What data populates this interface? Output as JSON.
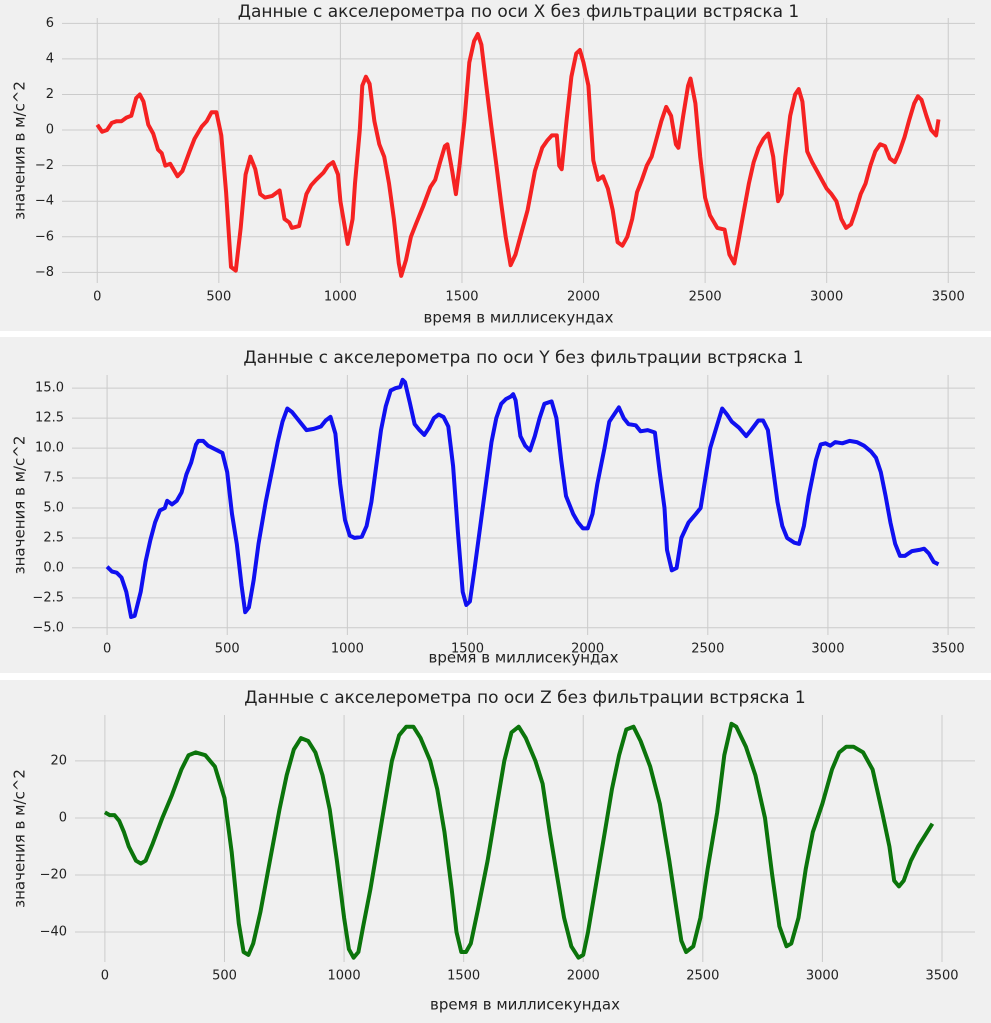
{
  "chart_data": [
    {
      "type": "line",
      "title": "Данные с акселерометра по оси X без фильтрации встряска 1",
      "xlabel": "время в миллисекундах",
      "ylabel": "значения в м/с^2",
      "xlim": [
        -145,
        3610
      ],
      "ylim": [
        -8.6,
        6.3
      ],
      "xticks": [
        0,
        500,
        1000,
        1500,
        2000,
        2500,
        3000,
        3500
      ],
      "yticks": [
        {
          "value": -8,
          "label": "−8"
        },
        {
          "value": -6,
          "label": "−6"
        },
        {
          "value": -4,
          "label": "−4"
        },
        {
          "value": -2,
          "label": "−2"
        },
        0,
        2,
        4,
        6
      ],
      "grid": true,
      "x": [
        0,
        20,
        40,
        60,
        80,
        100,
        120,
        140,
        160,
        175,
        190,
        210,
        230,
        250,
        265,
        280,
        300,
        330,
        350,
        380,
        400,
        430,
        450,
        470,
        490,
        510,
        530,
        550,
        570,
        590,
        600,
        610,
        630,
        650,
        670,
        690,
        720,
        750,
        770,
        790,
        800,
        830,
        860,
        880,
        900,
        930,
        950,
        970,
        990,
        1000,
        1030,
        1050,
        1060,
        1080,
        1090,
        1105,
        1120,
        1140,
        1160,
        1180,
        1200,
        1220,
        1240,
        1250,
        1270,
        1290,
        1310,
        1340,
        1370,
        1390,
        1410,
        1430,
        1440,
        1460,
        1475,
        1490,
        1510,
        1530,
        1550,
        1565,
        1580,
        1600,
        1620,
        1640,
        1660,
        1680,
        1700,
        1720,
        1740,
        1770,
        1800,
        1830,
        1850,
        1870,
        1890,
        1900,
        1910,
        1930,
        1950,
        1970,
        1985,
        2000,
        2020,
        2040,
        2060,
        2080,
        2100,
        2120,
        2140,
        2160,
        2180,
        2200,
        2220,
        2240,
        2260,
        2280,
        2300,
        2320,
        2340,
        2360,
        2380,
        2390,
        2410,
        2430,
        2440,
        2460,
        2480,
        2500,
        2520,
        2550,
        2580,
        2600,
        2620,
        2640,
        2660,
        2680,
        2700,
        2720,
        2740,
        2760,
        2780,
        2790,
        2800,
        2815,
        2830,
        2850,
        2870,
        2885,
        2900,
        2920,
        2940,
        2960,
        2980,
        3000,
        3020,
        3040,
        3060,
        3080,
        3100,
        3120,
        3140,
        3160,
        3180,
        3200,
        3220,
        3240,
        3260,
        3280,
        3300,
        3320,
        3340,
        3360,
        3375,
        3390,
        3410,
        3430,
        3450,
        3460
      ],
      "series": [
        {
          "color": "#f52222",
          "values": [
            0.3,
            -0.1,
            0,
            0.4,
            0.5,
            0.5,
            0.7,
            0.8,
            1.8,
            2.0,
            1.6,
            0.3,
            -0.2,
            -1.1,
            -1.3,
            -2.0,
            -1.9,
            -2.6,
            -2.3,
            -1.2,
            -0.5,
            0.2,
            0.5,
            1.0,
            1.0,
            -0.3,
            -3.5,
            -7.7,
            -7.9,
            -5.5,
            -4.0,
            -2.5,
            -1.5,
            -2.2,
            -3.6,
            -3.8,
            -3.7,
            -3.4,
            -5.0,
            -5.2,
            -5.5,
            -5.4,
            -3.6,
            -3.1,
            -2.8,
            -2.4,
            -2.0,
            -1.8,
            -2.5,
            -4.0,
            -6.4,
            -5.0,
            -3.0,
            0.0,
            2.5,
            3.0,
            2.6,
            0.5,
            -0.8,
            -1.5,
            -3.0,
            -5.0,
            -7.5,
            -8.2,
            -7.3,
            -6.0,
            -5.3,
            -4.3,
            -3.2,
            -2.8,
            -1.8,
            -0.9,
            -0.8,
            -2.3,
            -3.6,
            -2.0,
            0.5,
            3.8,
            5.0,
            5.4,
            4.8,
            2.5,
            0.3,
            -1.8,
            -4.0,
            -6.0,
            -7.6,
            -7.0,
            -6.0,
            -4.5,
            -2.3,
            -1.0,
            -0.6,
            -0.3,
            -0.3,
            -2.0,
            -2.2,
            0.5,
            3.0,
            4.3,
            4.5,
            3.8,
            2.5,
            -1.7,
            -2.8,
            -2.6,
            -3.3,
            -4.5,
            -6.3,
            -6.5,
            -6.0,
            -5.0,
            -3.5,
            -2.8,
            -2.0,
            -1.5,
            -0.5,
            0.5,
            1.3,
            0.8,
            -0.8,
            -1.0,
            0.8,
            2.5,
            2.9,
            1.5,
            -1.5,
            -3.8,
            -4.8,
            -5.5,
            -5.6,
            -7.0,
            -7.5,
            -6.0,
            -4.5,
            -3.0,
            -1.8,
            -1.0,
            -0.5,
            -0.2,
            -1.5,
            -2.8,
            -4.0,
            -3.6,
            -1.5,
            0.8,
            2.0,
            2.3,
            1.6,
            -1.2,
            -1.8,
            -2.3,
            -2.8,
            -3.3,
            -3.6,
            -4.0,
            -5.0,
            -5.5,
            -5.3,
            -4.5,
            -3.6,
            -3.0,
            -2.0,
            -1.2,
            -0.8,
            -0.9,
            -1.6,
            -1.8,
            -1.2,
            -0.4,
            0.6,
            1.5,
            1.9,
            1.7,
            0.8,
            0,
            -0.3,
            0.6
          ]
        }
      ]
    },
    {
      "type": "line",
      "title": "Данные с акселерометра по оси Y без фильтрации встряска 1",
      "xlabel": "время в миллисекундах",
      "ylabel": "значения в м/с^2",
      "xlim": [
        -146,
        3612
      ],
      "ylim": [
        -5.6,
        16.1
      ],
      "xticks": [
        0,
        500,
        1000,
        1500,
        2000,
        2500,
        3000,
        3500
      ],
      "yticks": [
        {
          "value": -5,
          "label": "−5.0"
        },
        {
          "value": -2.5,
          "label": "−2.5"
        },
        {
          "value": 0,
          "label": "0.0"
        },
        2.5,
        {
          "value": 5,
          "label": "5.0"
        },
        7.5,
        {
          "value": 10,
          "label": "10.0"
        },
        12.5,
        {
          "value": 15,
          "label": "15.0"
        }
      ],
      "grid": true,
      "x": [
        0,
        20,
        40,
        60,
        80,
        100,
        115,
        140,
        160,
        180,
        200,
        220,
        240,
        250,
        270,
        290,
        310,
        330,
        350,
        370,
        380,
        400,
        420,
        450,
        480,
        500,
        520,
        540,
        560,
        575,
        590,
        610,
        630,
        660,
        690,
        710,
        730,
        750,
        770,
        790,
        810,
        830,
        860,
        890,
        910,
        930,
        950,
        970,
        990,
        1010,
        1030,
        1060,
        1080,
        1100,
        1120,
        1140,
        1160,
        1180,
        1200,
        1220,
        1230,
        1240,
        1260,
        1280,
        1300,
        1320,
        1340,
        1360,
        1380,
        1400,
        1420,
        1440,
        1460,
        1480,
        1495,
        1510,
        1530,
        1560,
        1580,
        1600,
        1620,
        1640,
        1660,
        1680,
        1690,
        1700,
        1720,
        1740,
        1760,
        1780,
        1800,
        1820,
        1850,
        1870,
        1890,
        1910,
        1940,
        1960,
        1980,
        2000,
        2020,
        2040,
        2070,
        2090,
        2110,
        2130,
        2150,
        2170,
        2200,
        2220,
        2250,
        2280,
        2300,
        2320,
        2330,
        2350,
        2370,
        2390,
        2420,
        2450,
        2470,
        2490,
        2510,
        2540,
        2560,
        2580,
        2600,
        2630,
        2660,
        2680,
        2710,
        2730,
        2750,
        2770,
        2790,
        2810,
        2830,
        2860,
        2880,
        2900,
        2920,
        2950,
        2970,
        2990,
        3010,
        3030,
        3060,
        3090,
        3120,
        3150,
        3180,
        3200,
        3220,
        3240,
        3260,
        3280,
        3300,
        3320,
        3350,
        3380,
        3400,
        3420,
        3440,
        3460
      ],
      "series": [
        {
          "color": "#1010f0",
          "values": [
            0.1,
            -0.3,
            -0.4,
            -0.8,
            -2.0,
            -4.1,
            -4.0,
            -2.0,
            0.5,
            2.3,
            3.8,
            4.8,
            5.0,
            5.6,
            5.3,
            5.6,
            6.3,
            7.8,
            8.8,
            10.3,
            10.6,
            10.6,
            10.2,
            9.9,
            9.6,
            8.0,
            4.5,
            2.0,
            -1.5,
            -3.7,
            -3.3,
            -1.0,
            2.0,
            5.5,
            8.5,
            10.5,
            12.2,
            13.3,
            13.0,
            12.5,
            12.0,
            11.5,
            11.6,
            11.8,
            12.3,
            12.6,
            11.2,
            7.0,
            4.0,
            2.7,
            2.5,
            2.6,
            3.5,
            5.5,
            8.5,
            11.5,
            13.5,
            14.8,
            15.0,
            15.1,
            15.7,
            15.5,
            13.8,
            12.0,
            11.5,
            11.1,
            11.7,
            12.5,
            12.8,
            12.6,
            11.8,
            8.5,
            3.0,
            -2.0,
            -3.1,
            -2.8,
            0.0,
            4.5,
            7.5,
            10.5,
            12.5,
            13.7,
            14.1,
            14.3,
            14.5,
            14.0,
            11.0,
            10.2,
            9.8,
            11.0,
            12.5,
            13.7,
            13.9,
            12.5,
            9.0,
            6.0,
            4.5,
            3.8,
            3.3,
            3.3,
            4.5,
            7.0,
            10.0,
            12.2,
            12.8,
            13.4,
            12.5,
            12.0,
            11.9,
            11.4,
            11.5,
            11.3,
            8.0,
            5.0,
            1.5,
            -0.2,
            0.0,
            2.5,
            3.8,
            4.5,
            5.0,
            7.5,
            10.0,
            12.0,
            13.3,
            12.8,
            12.2,
            11.7,
            11.0,
            11.5,
            12.3,
            12.3,
            11.5,
            8.5,
            5.5,
            3.5,
            2.5,
            2.1,
            2.0,
            3.5,
            6.0,
            9.0,
            10.3,
            10.4,
            10.2,
            10.5,
            10.4,
            10.6,
            10.5,
            10.2,
            9.7,
            9.2,
            8.0,
            6.0,
            3.8,
            2.0,
            1.0,
            1.0,
            1.4,
            1.5,
            1.6,
            1.2,
            0.5,
            0.3
          ]
        }
      ]
    },
    {
      "type": "line",
      "title": "Данные с акселерометра по оси Z без фильтрации встряска 1",
      "xlabel": "время в миллисекундах",
      "ylabel": "значения в м/с^2",
      "xlim": [
        -125,
        3638
      ],
      "ylim": [
        -50.5,
        36.1
      ],
      "xticks": [
        0,
        500,
        1000,
        1500,
        2000,
        2500,
        3000,
        3500
      ],
      "yticks": [
        {
          "value": -40,
          "label": "−40"
        },
        {
          "value": -20,
          "label": "−20"
        },
        0,
        20
      ],
      "grid": true,
      "x": [
        0,
        20,
        40,
        60,
        80,
        100,
        130,
        150,
        170,
        200,
        240,
        280,
        320,
        350,
        380,
        420,
        460,
        500,
        530,
        560,
        580,
        600,
        620,
        650,
        690,
        730,
        760,
        790,
        820,
        850,
        880,
        910,
        940,
        970,
        1000,
        1020,
        1040,
        1060,
        1080,
        1110,
        1140,
        1170,
        1200,
        1230,
        1260,
        1290,
        1320,
        1360,
        1390,
        1420,
        1450,
        1470,
        1490,
        1510,
        1530,
        1560,
        1600,
        1640,
        1670,
        1700,
        1730,
        1760,
        1800,
        1830,
        1860,
        1890,
        1920,
        1950,
        1980,
        2000,
        2020,
        2050,
        2090,
        2120,
        2150,
        2180,
        2210,
        2240,
        2280,
        2320,
        2360,
        2390,
        2410,
        2430,
        2460,
        2490,
        2520,
        2560,
        2590,
        2620,
        2640,
        2680,
        2720,
        2760,
        2790,
        2820,
        2850,
        2870,
        2900,
        2930,
        2960,
        3000,
        3040,
        3070,
        3100,
        3130,
        3170,
        3210,
        3250,
        3280,
        3300,
        3320,
        3340,
        3370,
        3400,
        3430,
        3460
      ],
      "series": [
        {
          "color": "#0b740b",
          "values": [
            2,
            1,
            1,
            -1,
            -5,
            -10,
            -15,
            -16,
            -15,
            -9,
            0,
            8,
            17,
            22,
            23,
            22,
            18,
            7,
            -12,
            -37,
            -47,
            -48,
            -44,
            -33,
            -15,
            3,
            15,
            24,
            28,
            27,
            23,
            15,
            3,
            -15,
            -35,
            -46,
            -49,
            -47,
            -38,
            -25,
            -10,
            5,
            20,
            29,
            32,
            32,
            28,
            20,
            10,
            -5,
            -25,
            -40,
            -47,
            -47,
            -44,
            -32,
            -15,
            5,
            20,
            30,
            32,
            28,
            20,
            12,
            -5,
            -20,
            -35,
            -45,
            -49,
            -48,
            -40,
            -25,
            -5,
            10,
            22,
            31,
            32,
            27,
            18,
            5,
            -15,
            -32,
            -43,
            -47,
            -45,
            -35,
            -18,
            2,
            22,
            33,
            32,
            25,
            15,
            0,
            -20,
            -38,
            -45,
            -44,
            -35,
            -18,
            -5,
            5,
            17,
            23,
            25,
            25,
            23,
            17,
            2,
            -10,
            -22,
            -24,
            -22,
            -15,
            -10,
            -6,
            -2
          ]
        }
      ]
    }
  ]
}
